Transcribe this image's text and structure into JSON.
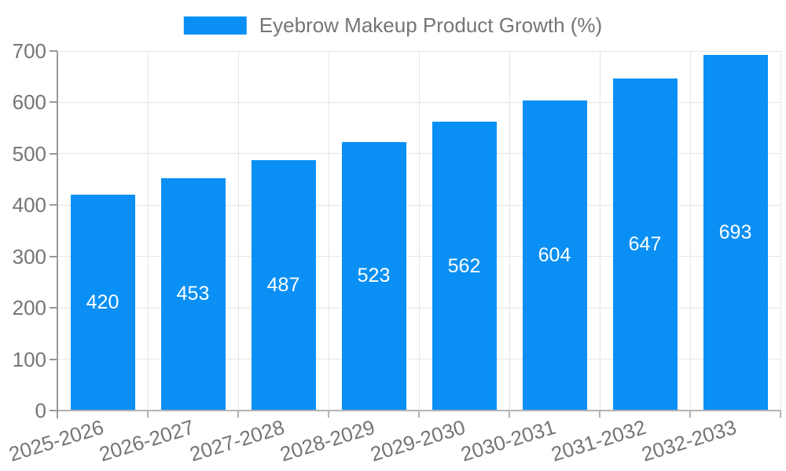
{
  "legend": {
    "label": "Eyebrow Makeup Product Growth (%)"
  },
  "chart_data": {
    "type": "bar",
    "title": "Eyebrow Makeup Product Growth (%)",
    "categories": [
      "2025-2026",
      "2026-2027",
      "2027-2028",
      "2028-2029",
      "2029-2030",
      "2030-2031",
      "2031-2032",
      "2032-2033"
    ],
    "values": [
      420,
      453,
      487,
      523,
      562,
      604,
      647,
      693
    ],
    "value_labels": [
      "420",
      "453",
      "487",
      "523",
      "562",
      "604",
      "647",
      "693"
    ],
    "xlabel": "",
    "ylabel": "",
    "ylim": [
      0,
      700
    ],
    "yticks": [
      0,
      100,
      200,
      300,
      400,
      500,
      600,
      700
    ],
    "grid": true,
    "legend_position": "top-center",
    "colors": {
      "bar": "#0a90f5",
      "value_label": "#ffffff",
      "axis_text": "#757575",
      "gridline": "#e6e6e6",
      "y_axis_line": "#999999",
      "x_baseline": "#b3b3b3"
    }
  }
}
